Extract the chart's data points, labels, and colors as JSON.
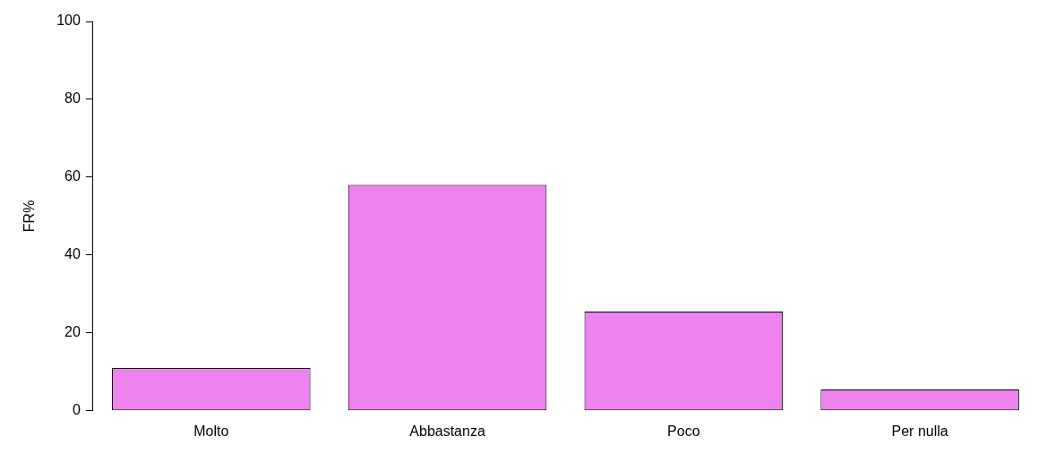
{
  "chart_data": {
    "type": "bar",
    "ylabel": "FR%",
    "categories": [
      "Molto",
      "Abbastanza",
      "Poco",
      "Per nulla"
    ],
    "values": [
      11,
      58,
      25.5,
      5.5
    ],
    "color": "#ee82ee",
    "ylim": [
      0,
      100
    ],
    "yticks": [
      0,
      20,
      40,
      60,
      80,
      100
    ],
    "grid": false,
    "legend": false
  }
}
